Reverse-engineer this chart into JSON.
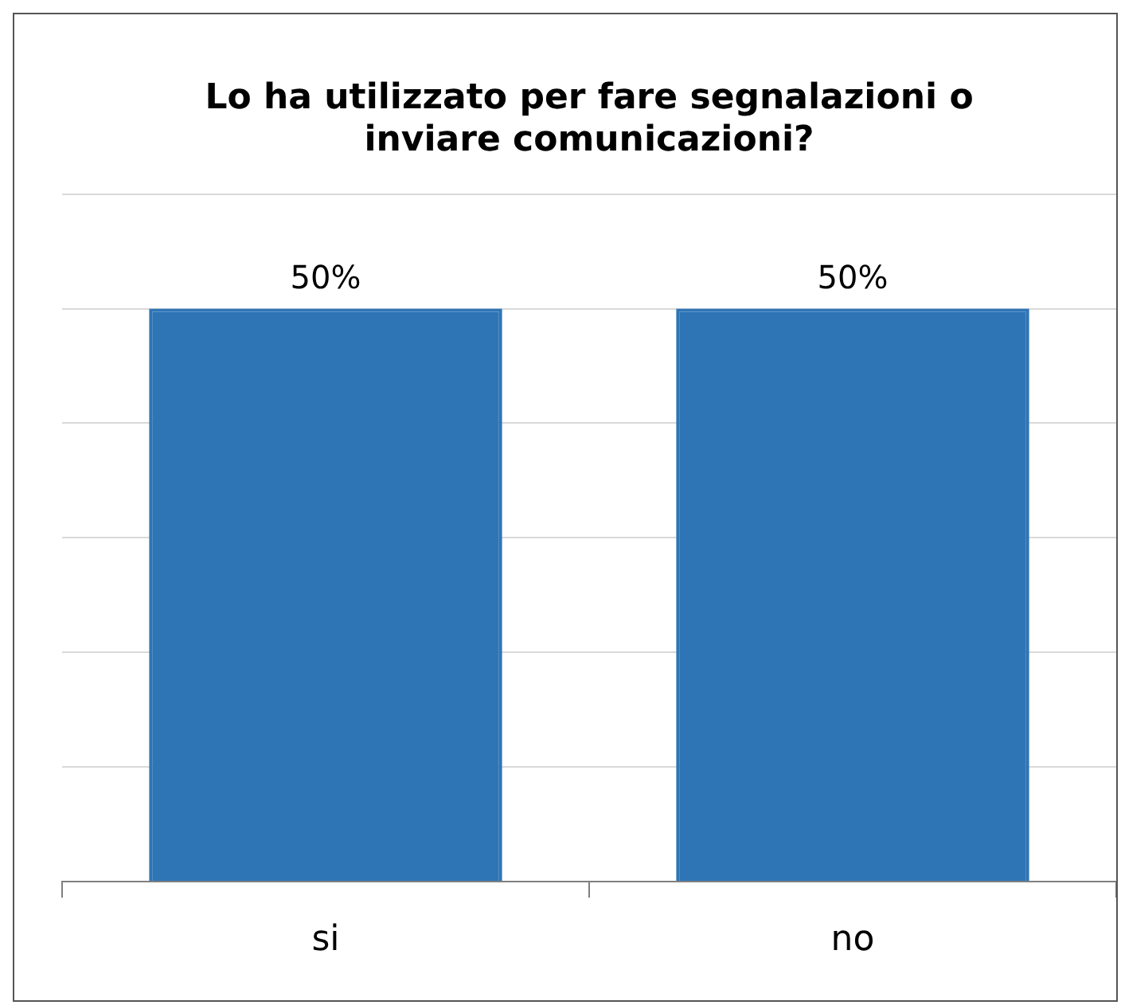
{
  "chart_data": {
    "type": "bar",
    "title": "Lo ha utilizzato per fare segnalazioni o inviare comunicazioni?",
    "categories": [
      "si",
      "no"
    ],
    "values": [
      50,
      50
    ],
    "value_labels": [
      "50%",
      "50%"
    ],
    "color": "#2e75b6",
    "ylim": [
      0,
      60
    ],
    "grid": "y",
    "tick_labels": "x"
  }
}
